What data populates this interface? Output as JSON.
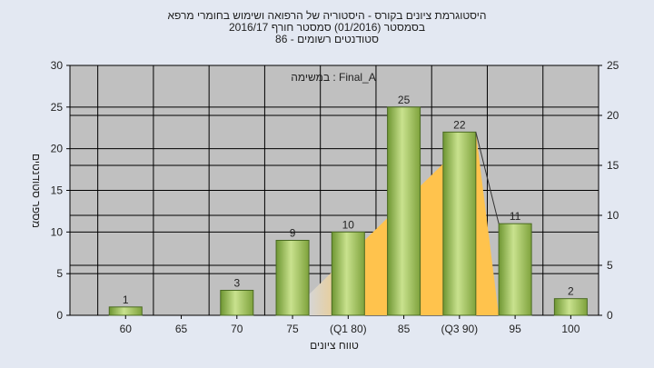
{
  "title_lines": [
    "היסטוגרמת ציונים בקורס - היסטוריה של הרפואה ושימוש בחומרי מרפא",
    "בסמסטר  (01/2016)  סמסטר חורף 2016/17",
    "סטודנטים רשומים - 86"
  ],
  "annotation": "במשימה : Final_A",
  "chart_data": {
    "type": "bar",
    "categories": [
      "60",
      "65",
      "70",
      "75",
      "(Q1 80)",
      "85",
      "(Q3 90)",
      "95",
      "100"
    ],
    "values": [
      1,
      0,
      3,
      9,
      10,
      25,
      22,
      11,
      2
    ],
    "data_labels": [
      "1",
      "",
      "3",
      "9",
      "10",
      "25",
      "22",
      "11",
      "2"
    ],
    "xlabel": "טווח ציונים",
    "ylabel": "מספר סטודנטים",
    "ylim": [
      0,
      30
    ],
    "yticks": [
      0,
      5,
      10,
      15,
      20,
      25,
      30
    ],
    "y2lim": [
      0,
      25
    ],
    "y2ticks": [
      0,
      5,
      10,
      15,
      20,
      25
    ],
    "interquartile_area": {
      "x_from": "75",
      "x_to": "(Q3 90)",
      "y_start": 2.5,
      "y_peak": 22
    },
    "grid": true,
    "colors": {
      "bar": "#8fb54a",
      "plot_bg": "#c0c0c0",
      "area": "#ffc34d",
      "page_bg": "#e3e8f2"
    }
  }
}
